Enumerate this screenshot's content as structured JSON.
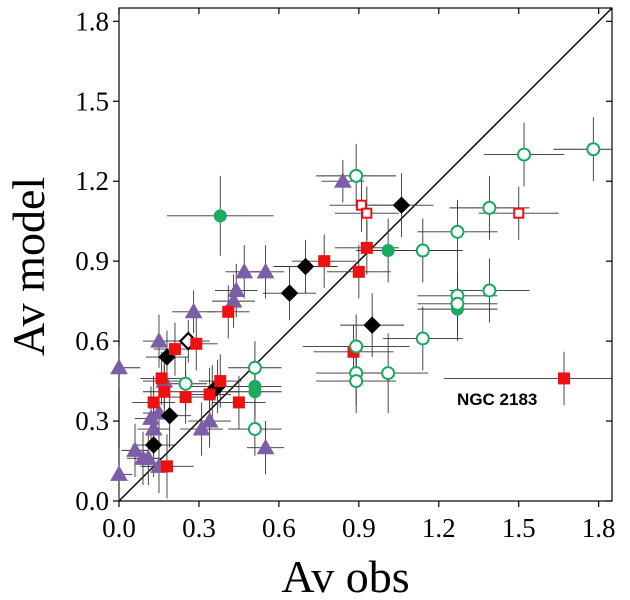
{
  "chart_data": {
    "type": "scatter",
    "title": "",
    "xlabel": "Av obs",
    "ylabel": "Av model",
    "xlim": [
      0.0,
      1.85
    ],
    "ylim": [
      0.0,
      1.85
    ],
    "x_ticks": [
      "0.0",
      "0.3",
      "0.6",
      "0.9",
      "1.2",
      "1.5",
      "1.8"
    ],
    "y_ticks": [
      "0.0",
      "0.3",
      "0.6",
      "0.9",
      "1.2",
      "1.5",
      "1.8"
    ],
    "reference_line": "y = x",
    "annotations": [
      {
        "text": "NGC 2183",
        "x": 1.57,
        "y": 0.36
      }
    ],
    "series": [
      {
        "name": "purple-triangles",
        "marker": "triangle",
        "filled": true,
        "color": "#7B5EA7",
        "points": [
          {
            "x": 0.0,
            "y": 0.5,
            "xerr": 0.08,
            "yerr": 0.08
          },
          {
            "x": 0.0,
            "y": 0.1,
            "xerr": 0.05,
            "yerr": 0.1
          },
          {
            "x": 0.06,
            "y": 0.19,
            "xerr": 0.05,
            "yerr": 0.1
          },
          {
            "x": 0.09,
            "y": 0.16,
            "xerr": 0.06,
            "yerr": 0.1
          },
          {
            "x": 0.11,
            "y": 0.16,
            "xerr": 0.05,
            "yerr": 0.1
          },
          {
            "x": 0.12,
            "y": 0.31,
            "xerr": 0.06,
            "yerr": 0.12
          },
          {
            "x": 0.13,
            "y": 0.27,
            "xerr": 0.06,
            "yerr": 0.1
          },
          {
            "x": 0.15,
            "y": 0.33,
            "xerr": 0.06,
            "yerr": 0.1
          },
          {
            "x": 0.15,
            "y": 0.6,
            "xerr": 0.06,
            "yerr": 0.1
          },
          {
            "x": 0.15,
            "y": 0.13,
            "xerr": 0.06,
            "yerr": 0.1
          },
          {
            "x": 0.17,
            "y": 0.45,
            "xerr": 0.08,
            "yerr": 0.1
          },
          {
            "x": 0.28,
            "y": 0.71,
            "xerr": 0.08,
            "yerr": 0.08
          },
          {
            "x": 0.31,
            "y": 0.27,
            "xerr": 0.08,
            "yerr": 0.1
          },
          {
            "x": 0.34,
            "y": 0.3,
            "xerr": 0.08,
            "yerr": 0.1
          },
          {
            "x": 0.43,
            "y": 0.75,
            "xerr": 0.08,
            "yerr": 0.1
          },
          {
            "x": 0.44,
            "y": 0.79,
            "xerr": 0.08,
            "yerr": 0.1
          },
          {
            "x": 0.47,
            "y": 0.86,
            "xerr": 0.07,
            "yerr": 0.1
          },
          {
            "x": 0.55,
            "y": 0.86,
            "xerr": 0.07,
            "yerr": 0.1
          },
          {
            "x": 0.55,
            "y": 0.2,
            "xerr": 0.07,
            "yerr": 0.1
          },
          {
            "x": 0.84,
            "y": 1.2,
            "xerr": 0.08,
            "yerr": 0.08
          }
        ]
      },
      {
        "name": "black-diamonds",
        "marker": "diamond",
        "filled": true,
        "color": "#000000",
        "points": [
          {
            "x": 0.13,
            "y": 0.21,
            "xerr": 0.08,
            "yerr": 0.12
          },
          {
            "x": 0.18,
            "y": 0.54,
            "xerr": 0.08,
            "yerr": 0.1
          },
          {
            "x": 0.19,
            "y": 0.32,
            "xerr": 0.08,
            "yerr": 0.12
          },
          {
            "x": 0.35,
            "y": 0.41,
            "xerr": 0.1,
            "yerr": 0.1
          },
          {
            "x": 0.37,
            "y": 0.43,
            "xerr": 0.1,
            "yerr": 0.1
          },
          {
            "x": 0.64,
            "y": 0.78,
            "xerr": 0.1,
            "yerr": 0.1
          },
          {
            "x": 0.7,
            "y": 0.88,
            "xerr": 0.12,
            "yerr": 0.1
          },
          {
            "x": 0.95,
            "y": 0.66,
            "xerr": 0.12,
            "yerr": 0.12
          },
          {
            "x": 1.06,
            "y": 1.11,
            "xerr": 0.12,
            "yerr": 0.12
          }
        ]
      },
      {
        "name": "black-diamond-open",
        "marker": "diamond",
        "filled": false,
        "color": "#000000",
        "points": [
          {
            "x": 0.26,
            "y": 0.6,
            "xerr": 0.08,
            "yerr": 0.08
          }
        ]
      },
      {
        "name": "red-squares",
        "marker": "square",
        "filled": true,
        "color": "#EE1111",
        "points": [
          {
            "x": 0.13,
            "y": 0.37,
            "xerr": 0.08,
            "yerr": 0.1
          },
          {
            "x": 0.16,
            "y": 0.46,
            "xerr": 0.08,
            "yerr": 0.1
          },
          {
            "x": 0.17,
            "y": 0.41,
            "xerr": 0.08,
            "yerr": 0.1
          },
          {
            "x": 0.18,
            "y": 0.13,
            "xerr": 0.1,
            "yerr": 0.12
          },
          {
            "x": 0.21,
            "y": 0.57,
            "xerr": 0.08,
            "yerr": 0.1
          },
          {
            "x": 0.25,
            "y": 0.39,
            "xerr": 0.1,
            "yerr": 0.1
          },
          {
            "x": 0.29,
            "y": 0.59,
            "xerr": 0.08,
            "yerr": 0.1
          },
          {
            "x": 0.34,
            "y": 0.4,
            "xerr": 0.08,
            "yerr": 0.1
          },
          {
            "x": 0.38,
            "y": 0.45,
            "xerr": 0.08,
            "yerr": 0.1
          },
          {
            "x": 0.41,
            "y": 0.71,
            "xerr": 0.08,
            "yerr": 0.1
          },
          {
            "x": 0.45,
            "y": 0.37,
            "xerr": 0.1,
            "yerr": 0.1
          },
          {
            "x": 0.77,
            "y": 0.9,
            "xerr": 0.12,
            "yerr": 0.1
          },
          {
            "x": 0.88,
            "y": 0.56,
            "xerr": 0.15,
            "yerr": 0.1
          },
          {
            "x": 0.9,
            "y": 0.86,
            "xerr": 0.12,
            "yerr": 0.1
          },
          {
            "x": 0.93,
            "y": 0.95,
            "xerr": 0.12,
            "yerr": 0.1
          },
          {
            "x": 1.67,
            "y": 0.46,
            "xerr": 0.45,
            "yerr": 0.1
          }
        ]
      },
      {
        "name": "red-squares-open",
        "marker": "square",
        "filled": false,
        "color": "#EE1111",
        "points": [
          {
            "x": 0.91,
            "y": 1.11,
            "xerr": 0.12,
            "yerr": 0.1
          },
          {
            "x": 0.93,
            "y": 1.08,
            "xerr": 0.12,
            "yerr": 0.1
          },
          {
            "x": 1.5,
            "y": 1.08,
            "xerr": 0.15,
            "yerr": 0.1
          }
        ]
      },
      {
        "name": "green-circles",
        "marker": "circle",
        "filled": true,
        "color": "#1BAA5F",
        "points": [
          {
            "x": 0.38,
            "y": 1.07,
            "xerr": 0.2,
            "yerr": 0.15
          },
          {
            "x": 0.51,
            "y": 0.43,
            "xerr": 0.1,
            "yerr": 0.1
          },
          {
            "x": 0.51,
            "y": 0.41,
            "xerr": 0.1,
            "yerr": 0.1
          },
          {
            "x": 1.01,
            "y": 0.94,
            "xerr": 0.12,
            "yerr": 0.12
          },
          {
            "x": 1.27,
            "y": 0.72,
            "xerr": 0.15,
            "yerr": 0.12
          }
        ]
      },
      {
        "name": "green-circles-open",
        "marker": "circle",
        "filled": false,
        "color": "#1BAA5F",
        "points": [
          {
            "x": 0.25,
            "y": 0.44,
            "xerr": 0.08,
            "yerr": 0.1
          },
          {
            "x": 0.51,
            "y": 0.5,
            "xerr": 0.1,
            "yerr": 0.1
          },
          {
            "x": 0.51,
            "y": 0.27,
            "xerr": 0.1,
            "yerr": 0.1
          },
          {
            "x": 0.89,
            "y": 1.22,
            "xerr": 0.15,
            "yerr": 0.12
          },
          {
            "x": 0.89,
            "y": 0.58,
            "xerr": 0.2,
            "yerr": 0.12
          },
          {
            "x": 0.89,
            "y": 0.48,
            "xerr": 0.15,
            "yerr": 0.12
          },
          {
            "x": 0.89,
            "y": 0.45,
            "xerr": 0.15,
            "yerr": 0.12
          },
          {
            "x": 1.01,
            "y": 0.48,
            "xerr": 0.15,
            "yerr": 0.15
          },
          {
            "x": 1.14,
            "y": 0.94,
            "xerr": 0.15,
            "yerr": 0.12
          },
          {
            "x": 1.14,
            "y": 0.61,
            "xerr": 0.15,
            "yerr": 0.12
          },
          {
            "x": 1.27,
            "y": 1.01,
            "xerr": 0.15,
            "yerr": 0.12
          },
          {
            "x": 1.27,
            "y": 0.77,
            "xerr": 0.15,
            "yerr": 0.12
          },
          {
            "x": 1.27,
            "y": 0.74,
            "xerr": 0.15,
            "yerr": 0.12
          },
          {
            "x": 1.39,
            "y": 1.1,
            "xerr": 0.15,
            "yerr": 0.12
          },
          {
            "x": 1.39,
            "y": 0.79,
            "xerr": 0.15,
            "yerr": 0.12
          },
          {
            "x": 1.52,
            "y": 1.3,
            "xerr": 0.15,
            "yerr": 0.12
          },
          {
            "x": 1.78,
            "y": 1.32,
            "xerr": 0.15,
            "yerr": 0.12
          }
        ]
      }
    ]
  }
}
